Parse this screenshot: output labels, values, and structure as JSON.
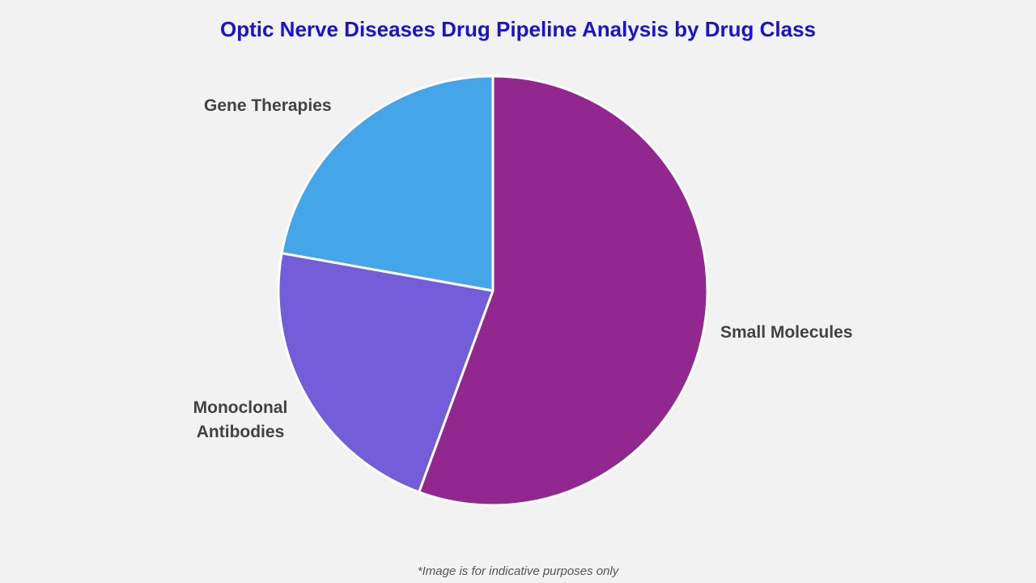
{
  "title": "Optic Nerve Diseases Drug Pipeline Analysis by Drug Class",
  "footer_note": "*Image is for indicative purposes only",
  "colors": {
    "background": "#F2F2F2",
    "title": "#1A12CD",
    "slice_label": "#424242",
    "footer": "#555555",
    "slice_border": "#FFFFFF"
  },
  "chart_data": {
    "type": "pie",
    "title": "Optic Nerve Diseases Drug Pipeline Analysis by Drug Class",
    "slices": [
      {
        "label": "Small Molecules",
        "value": 55.6,
        "color": "#92278F"
      },
      {
        "label": "Monoclonal Antibodies",
        "value": 22.2,
        "color": "#735DD9"
      },
      {
        "label": "Gene Therapies",
        "value": 22.2,
        "color": "#45A5E9"
      }
    ],
    "start_angle_deg": 0,
    "direction": "clockwise",
    "legend": "none",
    "labels_position": "outside",
    "units": "percent"
  }
}
